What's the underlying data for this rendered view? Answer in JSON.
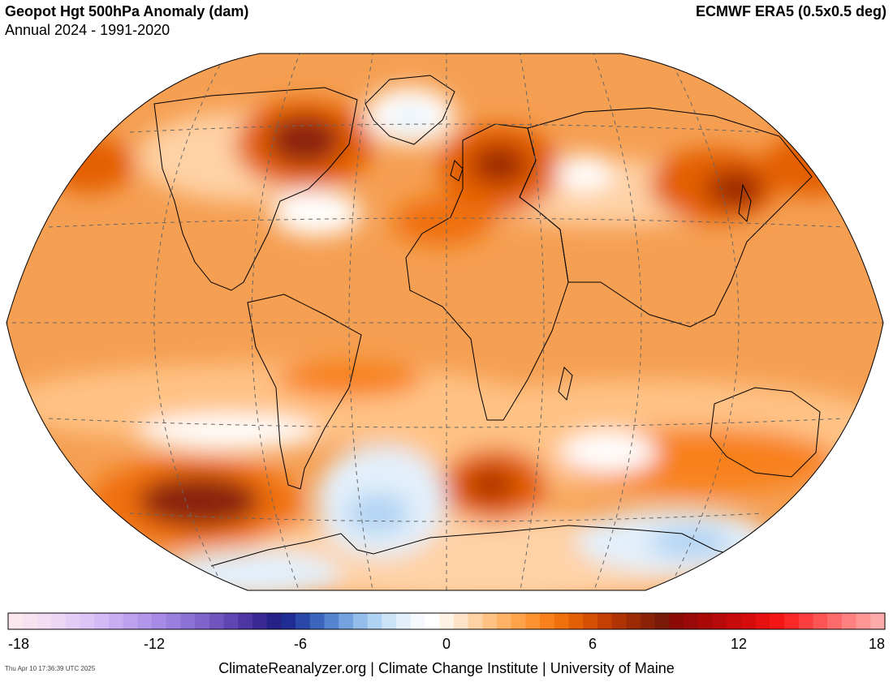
{
  "header": {
    "title": "Geopot Hgt 500hPa Anomaly (dam)",
    "subtitle": "Annual 2024 - 1991-2020",
    "dataset": "ECMWF ERA5 (0.5x0.5 deg)"
  },
  "colorbar": {
    "ticks": [
      "-18",
      "-12",
      "-6",
      "0",
      "6",
      "12",
      "18"
    ],
    "colors": [
      "#fde7ef",
      "#f9e2f0",
      "#f3ddf2",
      "#ecd6f4",
      "#e4cdf5",
      "#dcc4f6",
      "#d3b9f5",
      "#c8adf2",
      "#bca1ee",
      "#b196ea",
      "#a68ae5",
      "#9a7fdf",
      "#8d72d6",
      "#7f64cb",
      "#7055bf",
      "#5f45b1",
      "#4d36a2",
      "#3a2893",
      "#252186",
      "#1f2c94",
      "#2a48a8",
      "#3b66bc",
      "#5585cf",
      "#74a3df",
      "#93bdeb",
      "#b1d3f3",
      "#cce3f8",
      "#e3f0fb",
      "#f5f9fd",
      "#ffffff",
      "#fff3e6",
      "#ffe3c7",
      "#ffd2a6",
      "#ffc285",
      "#ffb266",
      "#ffa34a",
      "#fc9230",
      "#f8811c",
      "#f0700c",
      "#e45e04",
      "#d54e02",
      "#c44002",
      "#b03403",
      "#9c2a05",
      "#8a2207",
      "#7a1a08",
      "#8b0a06",
      "#9a0907",
      "#a90a08",
      "#b80a0a",
      "#c70b0b",
      "#d60c0c",
      "#e5100f",
      "#f31615",
      "#fb2828",
      "#fc3e3e",
      "#fd5454",
      "#fd6a6a",
      "#fe8080",
      "#fe9696",
      "#fdaaaa"
    ]
  },
  "footer": {
    "timestamp": "Thu Apr 10 17:36:39 UTC 2025",
    "credits": "ClimateReanalyzer.org | Climate Change Institute | University of Maine"
  },
  "map": {
    "projection": "Winkel Tripel",
    "background": "#f59f52",
    "anomalies": [
      {
        "region": "Hudson Bay / Eastern Canada",
        "sign": "positive",
        "strength": 6
      },
      {
        "region": "Northern Europe / Baltic",
        "sign": "positive",
        "strength": 5
      },
      {
        "region": "Japan / Korea",
        "sign": "positive",
        "strength": 5
      },
      {
        "region": "Bering Sea",
        "sign": "positive",
        "strength": 5
      },
      {
        "region": "Southeast Pacific",
        "sign": "positive",
        "strength": 7
      },
      {
        "region": "South Atlantic",
        "sign": "positive",
        "strength": 5
      },
      {
        "region": "Greenland",
        "sign": "negative",
        "strength": 1
      },
      {
        "region": "Western Atlantic",
        "sign": "neutral",
        "strength": 0
      },
      {
        "region": "Western Siberia",
        "sign": "neutral",
        "strength": 0
      },
      {
        "region": "Weddell Sea / Antarctic Peninsula",
        "sign": "negative",
        "strength": 2
      },
      {
        "region": "Ross Sea sector",
        "sign": "negative",
        "strength": 2
      },
      {
        "region": "Southern Indian Ocean",
        "sign": "neutral",
        "strength": 0
      }
    ]
  }
}
